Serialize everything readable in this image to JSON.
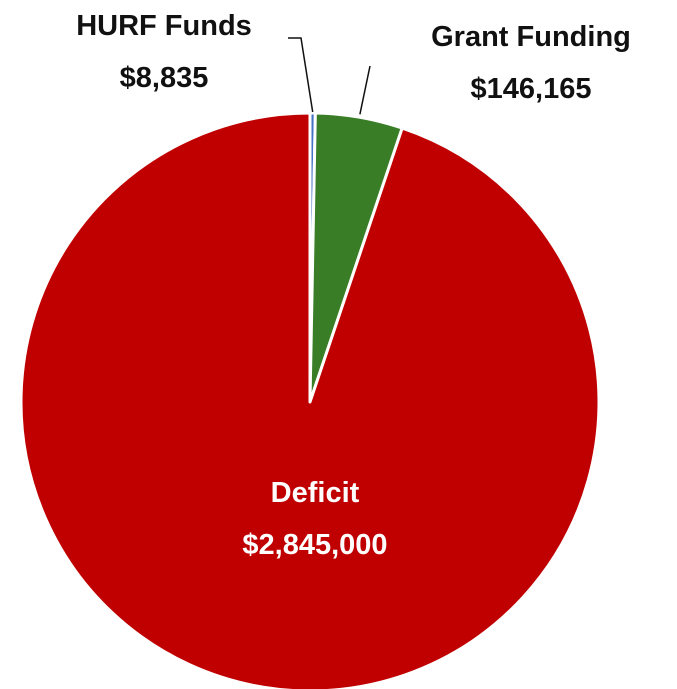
{
  "chart_data": {
    "type": "pie",
    "slices": [
      {
        "label": "HURF Funds",
        "value_text": "$8,835",
        "value": 8835,
        "color": "#4472c4"
      },
      {
        "label": "Grant Funding",
        "value_text": "$146,165",
        "value": 146165,
        "color": "#3a7d27"
      },
      {
        "label": "Deficit",
        "value_text": "$2,845,000",
        "value": 2845000,
        "color": "#c00000"
      }
    ],
    "start_angle_deg": 0,
    "direction": "clockwise",
    "slice_border_color": "#ffffff",
    "label_colors": {
      "outside": "#111111",
      "inside": "#ffffff"
    },
    "leader_line_color": "#111111"
  }
}
